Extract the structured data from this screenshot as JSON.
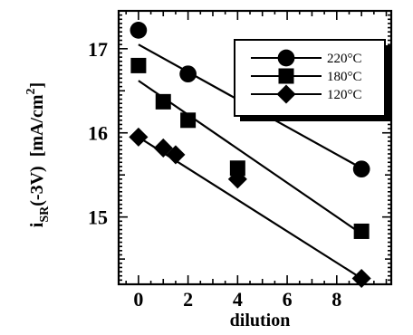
{
  "chart_data": {
    "type": "scatter",
    "xlabel": "dilution",
    "ylabel": "i_SR(-3V) [mA/cm^2]",
    "ylabel_parts": {
      "main": "i",
      "sub": "SR",
      "rest": "(-3V)  [mA/cm",
      "sup": "2",
      "close": "]"
    },
    "xlim": [
      -0.8,
      10.2
    ],
    "ylim": [
      14.2,
      17.45
    ],
    "x_ticks": [
      0,
      2,
      4,
      6,
      8
    ],
    "x_tick_labels": [
      "0",
      "2",
      "4",
      "6",
      "8"
    ],
    "y_ticks": [
      15,
      16,
      17
    ],
    "y_tick_labels": [
      "15",
      "16",
      "17"
    ],
    "grid": false,
    "legend_position": "top-right",
    "series": [
      {
        "name": "220°C",
        "marker": "circle",
        "x": [
          0,
          2,
          9
        ],
        "y": [
          17.22,
          16.7,
          15.57
        ],
        "fit": {
          "x": [
            0,
            9
          ],
          "y": [
            17.05,
            15.58
          ]
        }
      },
      {
        "name": "180°C",
        "marker": "square",
        "x": [
          0,
          1,
          2,
          4,
          9
        ],
        "y": [
          16.8,
          16.37,
          16.15,
          15.58,
          14.83
        ],
        "fit": {
          "x": [
            0,
            9
          ],
          "y": [
            16.62,
            14.8
          ]
        }
      },
      {
        "name": "120°C",
        "marker": "diamond",
        "x": [
          0,
          1,
          1.5,
          4,
          9
        ],
        "y": [
          15.95,
          15.82,
          15.74,
          15.45,
          14.27
        ],
        "fit": {
          "x": [
            0,
            9
          ],
          "y": [
            15.95,
            14.27
          ]
        }
      }
    ]
  }
}
